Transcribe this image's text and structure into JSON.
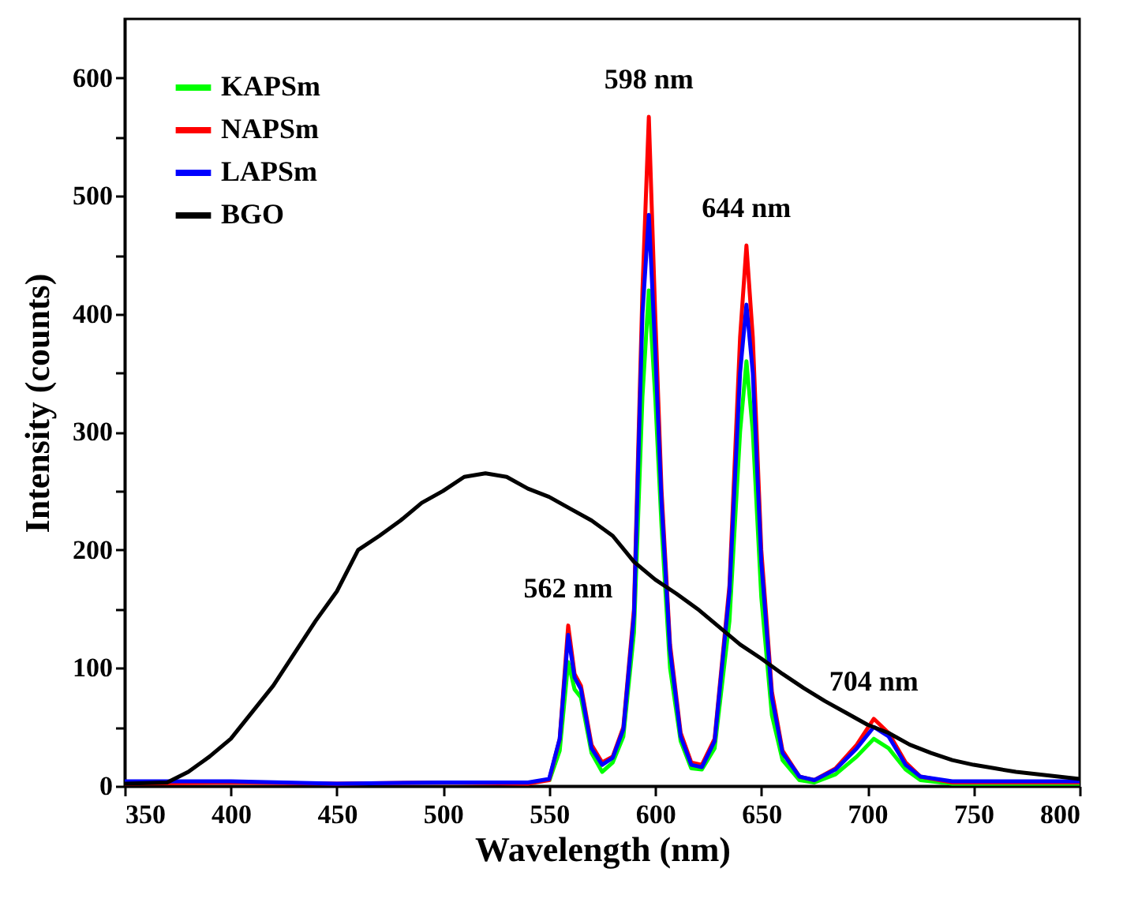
{
  "chart_data": {
    "type": "line",
    "xlabel": "Wavelength (nm)",
    "ylabel": "Intensity (counts)",
    "xlim": [
      350,
      800
    ],
    "ylim": [
      0,
      650
    ],
    "xticks": [
      350,
      400,
      450,
      500,
      550,
      600,
      650,
      700,
      750,
      800
    ],
    "yticks": [
      0,
      {
        "value": 50,
        "label": null
      },
      100,
      {
        "value": 150,
        "label": null
      },
      200,
      {
        "value": 250,
        "label": null
      },
      300,
      {
        "value": 350,
        "label": null
      },
      400,
      {
        "value": 450,
        "label": null
      },
      500,
      {
        "value": 550,
        "label": null
      },
      600
    ],
    "legend": "top left",
    "grid": false,
    "line_style": "solid",
    "marker": "none",
    "annotations": [
      {
        "text": "598 nm",
        "x": 597,
        "y": 567
      },
      {
        "text": "644 nm",
        "x": 643,
        "y": 458
      },
      {
        "text": "562 nm",
        "x": 559,
        "y": 136
      },
      {
        "text": "704 nm",
        "x": 703,
        "y": 57
      }
    ],
    "series": [
      {
        "name": "KAPSm",
        "color": "#00ff00",
        "x": [
          550,
          555,
          559,
          562,
          565,
          570,
          575,
          580,
          585,
          590,
          594,
          597,
          600,
          603,
          607,
          612,
          617,
          622,
          628,
          635,
          640,
          643,
          646,
          650,
          655,
          660,
          668,
          675,
          685,
          695,
          703,
          710,
          718,
          725,
          740,
          770,
          800
        ],
        "values": [
          4,
          30,
          105,
          82,
          75,
          28,
          12,
          20,
          42,
          130,
          330,
          420,
          330,
          220,
          100,
          38,
          15,
          14,
          32,
          140,
          300,
          360,
          300,
          160,
          60,
          22,
          5,
          3,
          10,
          25,
          40,
          32,
          14,
          5,
          2,
          2,
          2
        ]
      },
      {
        "name": "NAPSm",
        "color": "#ff0000",
        "x": [
          350,
          400,
          450,
          500,
          540,
          550,
          555,
          559,
          562,
          565,
          570,
          575,
          580,
          585,
          590,
          594,
          597,
          600,
          603,
          607,
          612,
          617,
          622,
          628,
          635,
          640,
          643,
          646,
          650,
          655,
          660,
          668,
          675,
          685,
          695,
          703,
          710,
          718,
          725,
          740,
          770,
          800
        ],
        "values": [
          2,
          3,
          2,
          3,
          2,
          5,
          40,
          136,
          95,
          85,
          35,
          20,
          25,
          50,
          150,
          420,
          567,
          400,
          250,
          120,
          45,
          20,
          18,
          40,
          170,
          380,
          458,
          380,
          200,
          80,
          30,
          8,
          5,
          15,
          35,
          57,
          45,
          20,
          8,
          3,
          3,
          3
        ]
      },
      {
        "name": "LAPSm",
        "color": "#0000ff",
        "x": [
          350,
          400,
          450,
          500,
          540,
          550,
          555,
          559,
          562,
          565,
          570,
          575,
          580,
          585,
          590,
          594,
          597,
          600,
          603,
          607,
          612,
          617,
          622,
          628,
          635,
          640,
          643,
          646,
          650,
          655,
          660,
          668,
          675,
          685,
          695,
          703,
          710,
          718,
          725,
          740,
          770,
          800
        ],
        "values": [
          4,
          4,
          2,
          3,
          3,
          6,
          40,
          128,
          92,
          82,
          32,
          18,
          24,
          48,
          145,
          400,
          484,
          370,
          240,
          115,
          42,
          18,
          16,
          38,
          165,
          350,
          408,
          350,
          190,
          75,
          28,
          8,
          5,
          14,
          32,
          50,
          42,
          18,
          8,
          4,
          4,
          4
        ]
      },
      {
        "name": "BGO",
        "color": "#000000",
        "x": [
          350,
          370,
          380,
          390,
          400,
          420,
          440,
          450,
          460,
          470,
          480,
          490,
          500,
          510,
          520,
          530,
          540,
          550,
          560,
          570,
          580,
          590,
          600,
          610,
          620,
          630,
          640,
          650,
          660,
          670,
          680,
          690,
          700,
          710,
          720,
          730,
          740,
          750,
          760,
          770,
          780,
          790,
          800
        ],
        "values": [
          2,
          3,
          12,
          25,
          40,
          85,
          140,
          165,
          200,
          212,
          225,
          240,
          250,
          262,
          265,
          262,
          252,
          245,
          235,
          225,
          212,
          190,
          175,
          163,
          150,
          135,
          120,
          108,
          95,
          83,
          72,
          62,
          52,
          45,
          35,
          28,
          22,
          18,
          15,
          12,
          10,
          8,
          6
        ]
      }
    ]
  }
}
